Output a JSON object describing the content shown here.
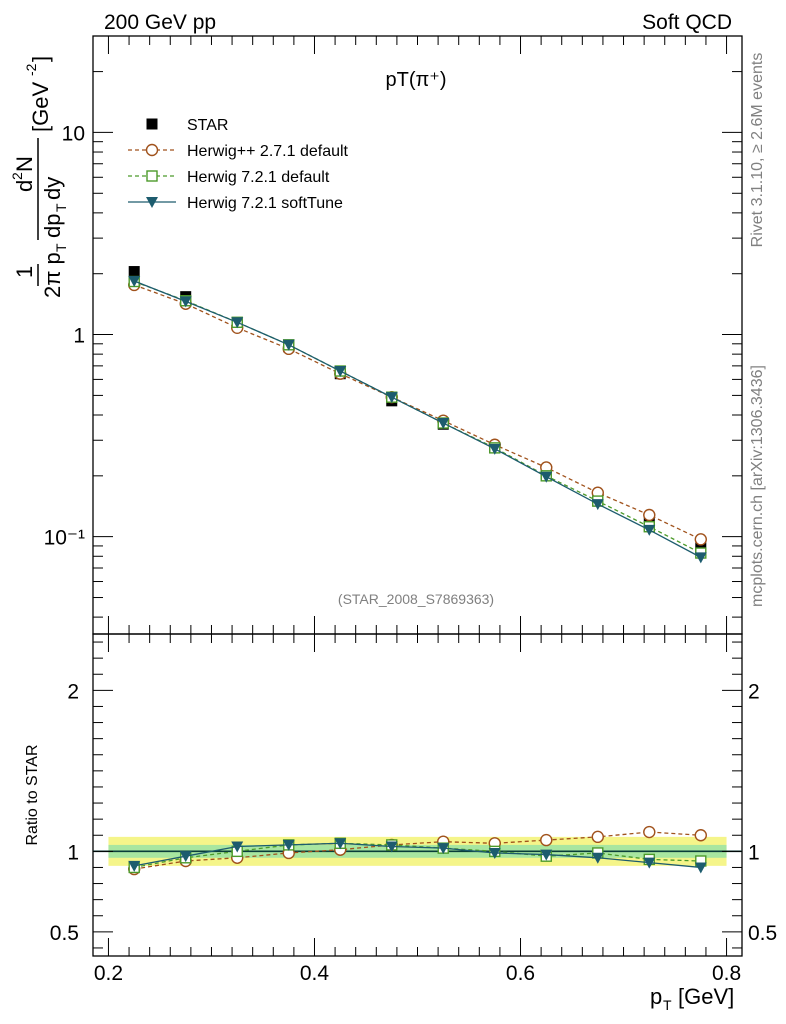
{
  "header": {
    "left": "200 GeV pp",
    "right": "Soft QCD"
  },
  "side": {
    "rivet": "Rivet 3.1.10, ≥ 2.6M events",
    "source": "mcplots.cern.ch [arXiv:1306.3436]"
  },
  "chart_data": [
    {
      "type": "line",
      "panel": "main",
      "title": "pT(π⁺)",
      "analysis_label": "(STAR_2008_S7869363)",
      "ylabel": "1/(2π pT) d²N/(dpT dy) [GeV⁻²]",
      "yscale": "log",
      "ylim": [
        0.033,
        30
      ],
      "xlim": [
        0.185,
        0.815
      ],
      "yticks": [
        {
          "value": 10,
          "label": "10"
        },
        {
          "value": 1,
          "label": "1"
        },
        {
          "value": 0.1,
          "label": "10⁻¹"
        }
      ],
      "x": [
        0.225,
        0.275,
        0.325,
        0.375,
        0.425,
        0.475,
        0.525,
        0.575,
        0.625,
        0.675,
        0.725,
        0.775
      ],
      "series": [
        {
          "name": "STAR",
          "color": "#000000",
          "marker": "filled-square",
          "values": [
            2.05,
            1.54,
            1.12,
            0.87,
            0.64,
            0.47,
            0.36,
            0.275,
            0.205,
            0.15,
            0.12,
            0.088
          ]
        },
        {
          "name": "Herwig++ 2.7.1 default",
          "color": "#a0521c",
          "marker": "open-circle",
          "values": [
            1.76,
            1.42,
            1.08,
            0.85,
            0.64,
            0.49,
            0.375,
            0.285,
            0.22,
            0.165,
            0.128,
            0.097
          ]
        },
        {
          "name": "Herwig 7.2.1 default",
          "color": "#4c9a2a",
          "marker": "open-square",
          "values": [
            1.83,
            1.47,
            1.15,
            0.89,
            0.66,
            0.49,
            0.365,
            0.275,
            0.2,
            0.15,
            0.112,
            0.083
          ]
        },
        {
          "name": "Herwig 7.2.1 softTune",
          "color": "#1d5c6e",
          "marker": "filled-triangle-down",
          "values": [
            1.84,
            1.46,
            1.15,
            0.89,
            0.66,
            0.49,
            0.365,
            0.272,
            0.198,
            0.145,
            0.108,
            0.079
          ]
        }
      ]
    },
    {
      "type": "line",
      "panel": "ratio",
      "ylabel": "Ratio to STAR",
      "xlabel": "p_T [GeV]",
      "xlim": [
        0.185,
        0.815
      ],
      "ylim": [
        0.35,
        2.35
      ],
      "xticks": [
        0.2,
        0.4,
        0.6,
        0.8
      ],
      "xtick_labels": [
        "0.2",
        "0.4",
        "0.6",
        "0.8"
      ],
      "yticks": [
        0.5,
        1,
        2
      ],
      "ytick_labels": [
        "0.5",
        "1",
        "2"
      ],
      "reference_band": {
        "inner": 0.04,
        "outer": 0.09
      },
      "x": [
        0.225,
        0.275,
        0.325,
        0.375,
        0.425,
        0.475,
        0.525,
        0.575,
        0.625,
        0.675,
        0.725,
        0.775
      ],
      "series": [
        {
          "name": "Herwig++ 2.7.1 default",
          "color": "#a0521c",
          "marker": "open-circle",
          "values": [
            0.89,
            0.94,
            0.96,
            0.99,
            1.01,
            1.04,
            1.06,
            1.05,
            1.07,
            1.09,
            1.12,
            1.1
          ]
        },
        {
          "name": "Herwig 7.2.1 default",
          "color": "#4c9a2a",
          "marker": "open-square",
          "values": [
            0.9,
            0.96,
            1.0,
            1.04,
            1.05,
            1.04,
            1.02,
            1.0,
            0.97,
            0.99,
            0.95,
            0.94
          ]
        },
        {
          "name": "Herwig 7.2.1 softTune",
          "color": "#1d5c6e",
          "marker": "filled-triangle-down",
          "values": [
            0.91,
            0.97,
            1.03,
            1.04,
            1.05,
            1.03,
            1.02,
            0.99,
            0.98,
            0.96,
            0.93,
            0.9
          ]
        }
      ]
    }
  ]
}
